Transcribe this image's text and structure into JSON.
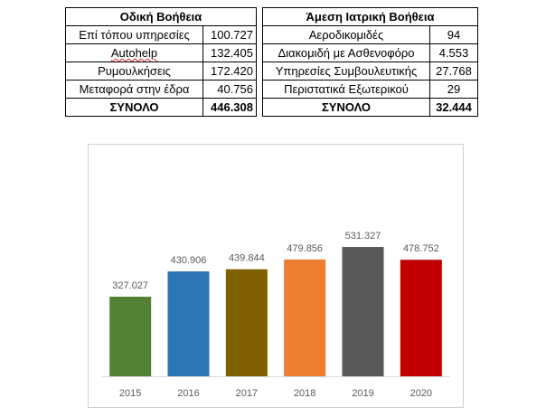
{
  "table": {
    "left_header": "Οδική Βοήθεια",
    "right_header": "Άμεση Ιατρική Βοήθεια",
    "rows": [
      {
        "left_label": "Επί τόπου υπηρεσίες",
        "left_value": "100.727",
        "right_label": "Αεροδικομιδές",
        "right_value": "94"
      },
      {
        "left_label": "Autohelp",
        "left_value": "132.405",
        "right_label": "Διακομιδή με Ασθενοφόρο",
        "right_value": "4.553"
      },
      {
        "left_label": "Ρυμουλκήσεις",
        "left_value": "172.420",
        "right_label": "Υπηρεσίες Συμβουλευτικής",
        "right_value": "27.768"
      },
      {
        "left_label": "Μεταφορά στην έδρα",
        "left_value": "40.756",
        "right_label": "Περιστατικά Εξωτερικού",
        "right_value": "29"
      }
    ],
    "total": {
      "left_label": "ΣΥΝΟΛΟ",
      "left_value": "446.308",
      "right_label": "ΣΥΝΟΛΟ",
      "right_value": "32.444"
    }
  },
  "chart_data": {
    "type": "bar",
    "categories": [
      "2015",
      "2016",
      "2017",
      "2018",
      "2019",
      "2020"
    ],
    "values": [
      327027,
      430906,
      439844,
      479856,
      531327,
      478752
    ],
    "value_labels": [
      "327.027",
      "430.906",
      "439.844",
      "479.856",
      "531.327",
      "478.752"
    ],
    "colors": [
      "#548235",
      "#2e75b6",
      "#7f6000",
      "#ed7d31",
      "#595959",
      "#c00000"
    ],
    "title": "",
    "xlabel": "",
    "ylabel": "",
    "ylim": [
      0,
      600000
    ],
    "grid": false,
    "legend": "none"
  }
}
